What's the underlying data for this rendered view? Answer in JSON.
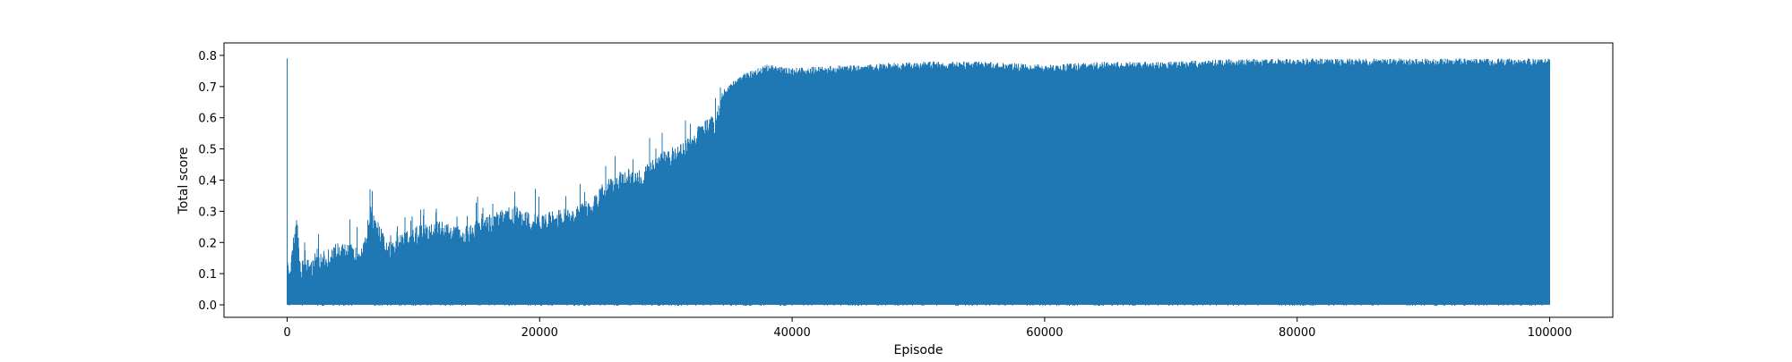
{
  "chart_data": {
    "type": "line",
    "xlabel": "Episode",
    "ylabel": "Total score",
    "xlim": [
      -5000,
      105000
    ],
    "ylim": [
      -0.04,
      0.84
    ],
    "x_ticks": [
      0,
      20000,
      40000,
      60000,
      80000,
      100000
    ],
    "x_tick_labels": [
      "0",
      "20000",
      "40000",
      "60000",
      "80000",
      "100000"
    ],
    "y_ticks": [
      0.0,
      0.1,
      0.2,
      0.3,
      0.4,
      0.5,
      0.6,
      0.7,
      0.8
    ],
    "y_tick_labels": [
      "0.0",
      "0.1",
      "0.2",
      "0.3",
      "0.4",
      "0.5",
      "0.6",
      "0.7",
      "0.8"
    ],
    "grid": false,
    "legend": "none",
    "series": [
      {
        "color": "#1f77b4",
        "episode_range": [
          0,
          100000
        ],
        "min_value": 0.0,
        "upper_envelope": {
          "x": [
            0,
            200,
            800,
            1000,
            2000,
            4000,
            6000,
            6600,
            8000,
            10000,
            12000,
            14000,
            16000,
            18000,
            20000,
            22000,
            24000,
            25000,
            26000,
            27000,
            28000,
            29000,
            30000,
            31000,
            32000,
            33000,
            34000,
            34400,
            35000,
            36000,
            38000,
            40000,
            45000,
            50000,
            55000,
            60000,
            65000,
            70000,
            75000,
            80000,
            85000,
            90000,
            95000,
            100000
          ],
          "y": [
            0.15,
            0.14,
            0.3,
            0.14,
            0.15,
            0.2,
            0.19,
            0.32,
            0.2,
            0.25,
            0.27,
            0.25,
            0.29,
            0.32,
            0.29,
            0.31,
            0.34,
            0.39,
            0.42,
            0.44,
            0.43,
            0.47,
            0.5,
            0.51,
            0.55,
            0.59,
            0.61,
            0.68,
            0.71,
            0.74,
            0.77,
            0.76,
            0.77,
            0.78,
            0.78,
            0.77,
            0.78,
            0.78,
            0.79,
            0.79,
            0.79,
            0.79,
            0.79,
            0.79
          ]
        }
      }
    ]
  }
}
